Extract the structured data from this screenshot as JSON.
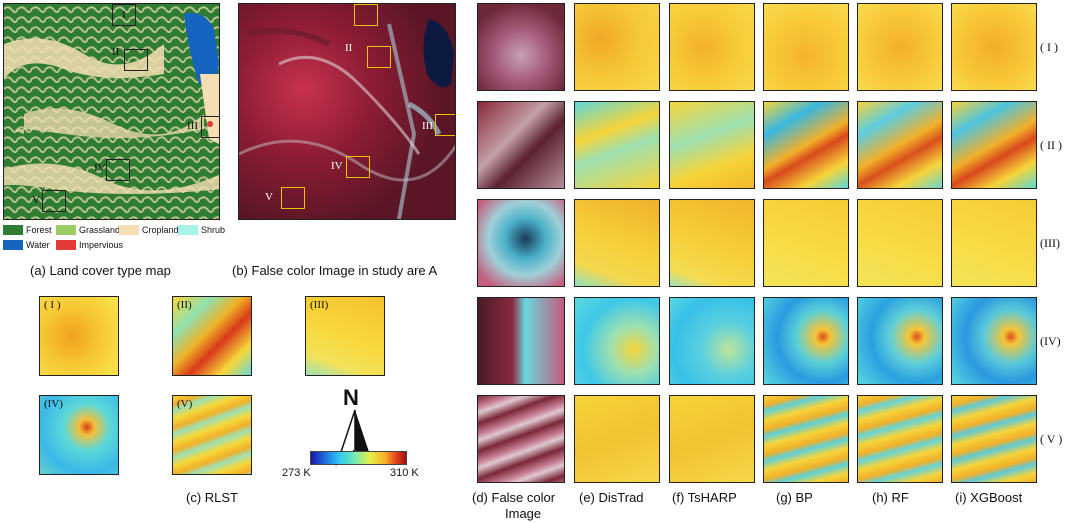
{
  "captions": {
    "a": "(a) Land cover type map",
    "b": "(b) False color Image in study are A",
    "c": "(c) RLST",
    "d_line1": "(d) False color",
    "d_line2": "Image",
    "e": "(e) DisTrad",
    "f": "(f) TsHARP",
    "g": "(g) BP",
    "h": "(h) RF",
    "i": "(i) XGBoost"
  },
  "legend": [
    {
      "label": "Forest",
      "color": "#2e7d32"
    },
    {
      "label": "Grassland",
      "color": "#9ccc65"
    },
    {
      "label": "Cropland",
      "color": "#f5deb3"
    },
    {
      "label": "Shrub",
      "color": "#a7f3e8"
    },
    {
      "label": "Water",
      "color": "#1565c0"
    },
    {
      "label": "Impervious",
      "color": "#e53935"
    }
  ],
  "map_markers": {
    "m1": "I",
    "m2": "II",
    "m3": "III",
    "m4": "IV",
    "m5": "V"
  },
  "row_labels": [
    "( I )",
    "( II )",
    "(III)",
    "(IV)",
    "( V )"
  ],
  "tile_labels": [
    "( I )",
    "(II)",
    "(III)",
    "(IV)",
    "(V)"
  ],
  "colorbar": {
    "min": "273 K",
    "max": "310 K"
  },
  "north": "N"
}
